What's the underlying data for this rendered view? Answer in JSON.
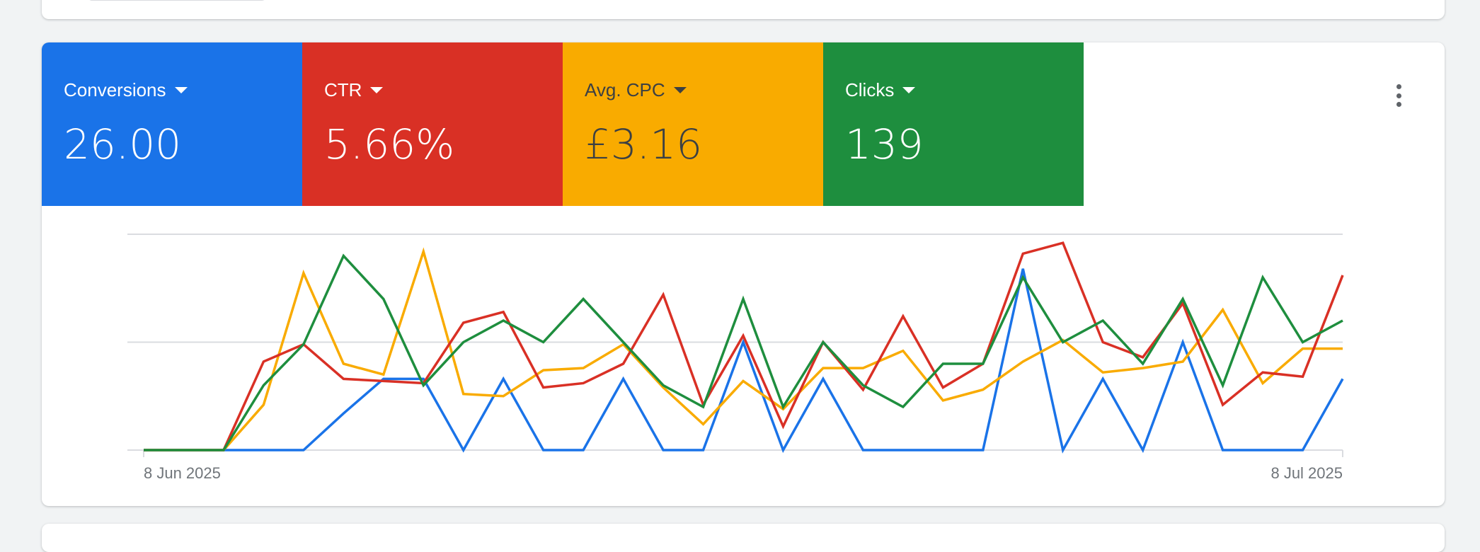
{
  "metrics": [
    {
      "label": "Conversions",
      "value": "26.00",
      "color": "#1a73e8",
      "text_color": "#ffffff"
    },
    {
      "label": "CTR",
      "value": "5.66%",
      "color": "#d93025",
      "text_color": "#ffffff"
    },
    {
      "label": "Avg. CPC",
      "value": "£3.16",
      "color": "#f9ab00",
      "text_color": "#3c4043"
    },
    {
      "label": "Clicks",
      "value": "139",
      "color": "#1e8e3e",
      "text_color": "#ffffff"
    }
  ],
  "menu_icon": "more-vert-icon",
  "chart_data": {
    "type": "line",
    "x_start": "8 Jun 2025",
    "x_end": "8 Jul 2025",
    "x_tick_labels": [
      "8 Jun 2025",
      "8 Jul 2025"
    ],
    "y_axis": "relative scale per series (no tick labels shown)",
    "ylim": [
      0,
      1
    ],
    "grid": true,
    "series": [
      {
        "name": "Conversions",
        "color": "#1a73e8",
        "values": [
          0,
          0,
          0,
          0,
          0,
          0.17,
          0.33,
          0.33,
          0,
          0.33,
          0,
          0,
          0.33,
          0,
          0,
          0.5,
          0,
          0.33,
          0,
          0,
          0,
          0,
          0.84,
          0,
          0.33,
          0,
          0.5,
          0,
          0,
          0,
          0.33
        ]
      },
      {
        "name": "CTR",
        "color": "#d93025",
        "values": [
          0,
          0,
          0,
          0.41,
          0.49,
          0.33,
          0.32,
          0.31,
          0.59,
          0.64,
          0.29,
          0.31,
          0.4,
          0.72,
          0.21,
          0.53,
          0.11,
          0.5,
          0.28,
          0.62,
          0.29,
          0.4,
          0.91,
          0.96,
          0.5,
          0.43,
          0.68,
          0.21,
          0.36,
          0.34,
          0.81
        ]
      },
      {
        "name": "Avg. CPC",
        "color": "#f9ab00",
        "values": [
          0,
          0,
          0,
          0.21,
          0.82,
          0.4,
          0.35,
          0.92,
          0.26,
          0.25,
          0.37,
          0.38,
          0.49,
          0.29,
          0.12,
          0.32,
          0.19,
          0.38,
          0.38,
          0.46,
          0.23,
          0.28,
          0.41,
          0.51,
          0.36,
          0.38,
          0.41,
          0.65,
          0.31,
          0.47,
          0.47
        ]
      },
      {
        "name": "Clicks",
        "color": "#1e8e3e",
        "values": [
          0,
          0,
          0,
          0.3,
          0.49,
          0.9,
          0.7,
          0.3,
          0.5,
          0.6,
          0.5,
          0.7,
          0.5,
          0.3,
          0.2,
          0.7,
          0.2,
          0.5,
          0.3,
          0.2,
          0.4,
          0.4,
          0.8,
          0.5,
          0.6,
          0.4,
          0.7,
          0.3,
          0.8,
          0.5,
          0.6
        ]
      }
    ]
  }
}
